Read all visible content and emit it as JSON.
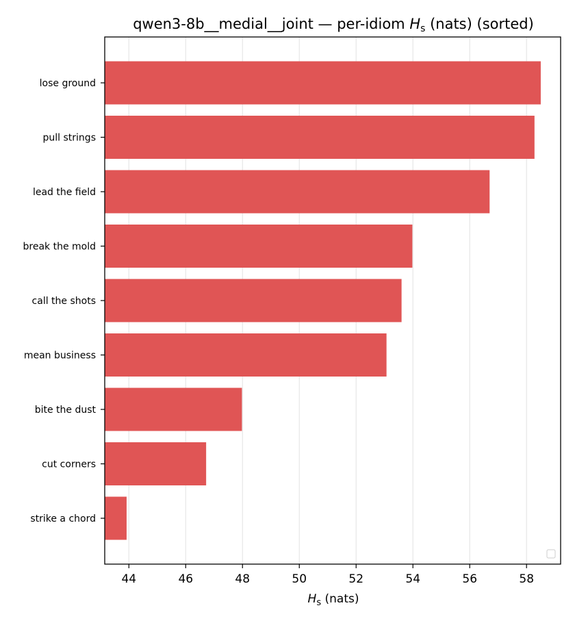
{
  "chart_data": {
    "type": "bar",
    "orientation": "horizontal",
    "title_prefix": "qwen3-8b__medial__joint — per-idiom ",
    "title_symbol": "H",
    "title_subscript": "s",
    "title_suffix": " (nats) (sorted)",
    "xlabel_symbol": "H",
    "xlabel_subscript": "s",
    "xlabel_suffix": " (nats)",
    "ylabel": "",
    "categories": [
      "lose ground",
      "pull strings",
      "lead the field",
      "break the mold",
      "call the shots",
      "mean business",
      "bite the dust",
      "cut corners",
      "strike a chord"
    ],
    "values": [
      58.5,
      58.28,
      56.7,
      53.98,
      53.6,
      53.07,
      47.98,
      46.72,
      43.92
    ],
    "xlim": [
      43.15,
      59.2
    ],
    "xticks": [
      44,
      46,
      48,
      50,
      52,
      54,
      56,
      58
    ],
    "grid": true,
    "legend_placement": "lower-right",
    "bar_color": "#e05555"
  }
}
